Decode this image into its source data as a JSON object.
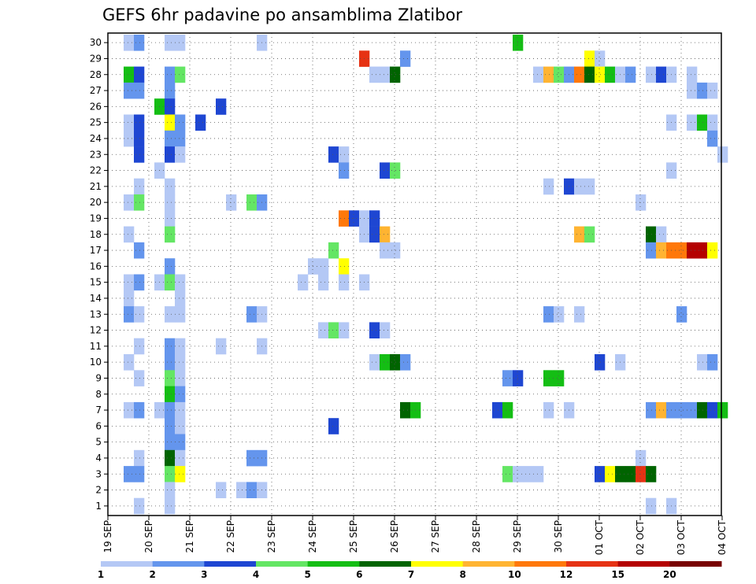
{
  "chart_data": {
    "type": "heatmap",
    "title": "GEFS 6hr padavine po ansamblima Zlatibor",
    "xlabel": "",
    "ylabel": "",
    "y_members": [
      1,
      30
    ],
    "y_ticks": [
      "1",
      "2",
      "3",
      "4",
      "5",
      "6",
      "7",
      "8",
      "9",
      "10",
      "11",
      "12",
      "13",
      "14",
      "15",
      "16",
      "17",
      "18",
      "19",
      "20",
      "21",
      "22",
      "23",
      "24",
      "25",
      "26",
      "27",
      "28",
      "29",
      "30"
    ],
    "x_ticks": [
      "19 SEP",
      "20 SEP",
      "21 SEP",
      "22 SEP",
      "23 SEP",
      "24 SEP",
      "25 SEP",
      "26 SEP",
      "27 SEP",
      "28 SEP",
      "29 SEP",
      "30 SEP",
      "01 OCT",
      "02 OCT",
      "03 OCT",
      "04 OCT"
    ],
    "x_unit": "6-hour step from 19 SEP 00Z",
    "x_range": [
      0,
      60
    ],
    "grid": true,
    "legend": {
      "position": "bottom",
      "thresholds": [
        "1",
        "2",
        "3",
        "4",
        "5",
        "6",
        "7",
        "8",
        "10",
        "12",
        "15",
        "20"
      ],
      "colors": [
        "#b4c8f5",
        "#6495ed",
        "#1e46d2",
        "#64e664",
        "#14be14",
        "#006400",
        "#ffff00",
        "#ffb432",
        "#ff780a",
        "#e63214",
        "#b40000",
        "#780000"
      ]
    },
    "cells": [
      [
        30,
        1,
        0
      ],
      [
        30,
        2,
        1
      ],
      [
        30,
        5,
        0
      ],
      [
        30,
        6,
        0
      ],
      [
        30,
        14,
        0
      ],
      [
        30,
        39,
        4
      ],
      [
        29,
        24,
        9
      ],
      [
        29,
        28,
        1
      ],
      [
        29,
        46,
        6
      ],
      [
        29,
        47,
        0
      ],
      [
        28,
        1,
        4
      ],
      [
        28,
        2,
        2
      ],
      [
        28,
        5,
        1
      ],
      [
        28,
        6,
        3
      ],
      [
        28,
        25,
        0
      ],
      [
        28,
        26,
        0
      ],
      [
        28,
        27,
        5
      ],
      [
        28,
        41,
        0
      ],
      [
        28,
        42,
        7
      ],
      [
        28,
        43,
        3
      ],
      [
        28,
        44,
        1
      ],
      [
        28,
        45,
        8
      ],
      [
        28,
        46,
        5
      ],
      [
        28,
        47,
        6
      ],
      [
        28,
        48,
        4
      ],
      [
        28,
        49,
        0
      ],
      [
        28,
        50,
        1
      ],
      [
        28,
        52,
        0
      ],
      [
        28,
        53,
        2
      ],
      [
        28,
        54,
        0
      ],
      [
        28,
        56,
        0
      ],
      [
        27,
        1,
        1
      ],
      [
        27,
        2,
        1
      ],
      [
        27,
        5,
        1
      ],
      [
        27,
        56,
        0
      ],
      [
        27,
        57,
        1
      ],
      [
        27,
        58,
        0
      ],
      [
        26,
        4,
        4
      ],
      [
        26,
        5,
        2
      ],
      [
        26,
        10,
        2
      ],
      [
        25,
        1,
        0
      ],
      [
        25,
        2,
        2
      ],
      [
        25,
        5,
        6
      ],
      [
        25,
        6,
        1
      ],
      [
        25,
        8,
        2
      ],
      [
        25,
        54,
        0
      ],
      [
        25,
        56,
        0
      ],
      [
        25,
        57,
        4
      ],
      [
        25,
        58,
        0
      ],
      [
        24,
        1,
        0
      ],
      [
        24,
        2,
        2
      ],
      [
        24,
        5,
        1
      ],
      [
        24,
        6,
        1
      ],
      [
        24,
        58,
        1
      ],
      [
        23,
        2,
        2
      ],
      [
        23,
        5,
        2
      ],
      [
        23,
        6,
        0
      ],
      [
        23,
        21,
        2
      ],
      [
        23,
        22,
        0
      ],
      [
        23,
        59,
        0
      ],
      [
        22,
        4,
        0
      ],
      [
        22,
        22,
        1
      ],
      [
        22,
        26,
        2
      ],
      [
        22,
        27,
        3
      ],
      [
        22,
        54,
        0
      ],
      [
        21,
        2,
        0
      ],
      [
        21,
        5,
        0
      ],
      [
        21,
        42,
        0
      ],
      [
        21,
        44,
        2
      ],
      [
        21,
        45,
        0
      ],
      [
        21,
        46,
        0
      ],
      [
        20,
        1,
        0
      ],
      [
        20,
        2,
        3
      ],
      [
        20,
        5,
        0
      ],
      [
        20,
        11,
        0
      ],
      [
        20,
        13,
        3
      ],
      [
        20,
        14,
        1
      ],
      [
        20,
        51,
        0
      ],
      [
        19,
        5,
        0
      ],
      [
        19,
        22,
        8
      ],
      [
        19,
        23,
        2
      ],
      [
        19,
        24,
        0
      ],
      [
        19,
        25,
        2
      ],
      [
        18,
        1,
        0
      ],
      [
        18,
        5,
        3
      ],
      [
        18,
        24,
        0
      ],
      [
        18,
        25,
        2
      ],
      [
        18,
        26,
        7
      ],
      [
        18,
        45,
        7
      ],
      [
        18,
        46,
        3
      ],
      [
        18,
        52,
        5
      ],
      [
        18,
        53,
        0
      ],
      [
        17,
        2,
        1
      ],
      [
        17,
        21,
        3
      ],
      [
        17,
        26,
        0
      ],
      [
        17,
        27,
        0
      ],
      [
        17,
        52,
        1
      ],
      [
        17,
        53,
        7
      ],
      [
        17,
        54,
        8
      ],
      [
        17,
        55,
        8
      ],
      [
        17,
        56,
        10
      ],
      [
        17,
        57,
        10
      ],
      [
        17,
        58,
        6
      ],
      [
        16,
        5,
        1
      ],
      [
        16,
        19,
        0
      ],
      [
        16,
        20,
        0
      ],
      [
        16,
        22,
        6
      ],
      [
        15,
        1,
        0
      ],
      [
        15,
        2,
        1
      ],
      [
        15,
        4,
        0
      ],
      [
        15,
        5,
        3
      ],
      [
        15,
        6,
        0
      ],
      [
        15,
        18,
        0
      ],
      [
        15,
        20,
        0
      ],
      [
        15,
        22,
        0
      ],
      [
        15,
        24,
        0
      ],
      [
        14,
        1,
        0
      ],
      [
        14,
        6,
        0
      ],
      [
        13,
        1,
        1
      ],
      [
        13,
        2,
        0
      ],
      [
        13,
        5,
        0
      ],
      [
        13,
        6,
        0
      ],
      [
        13,
        13,
        1
      ],
      [
        13,
        14,
        0
      ],
      [
        13,
        42,
        1
      ],
      [
        13,
        43,
        0
      ],
      [
        13,
        45,
        0
      ],
      [
        13,
        55,
        1
      ],
      [
        12,
        20,
        0
      ],
      [
        12,
        21,
        3
      ],
      [
        12,
        22,
        0
      ],
      [
        12,
        25,
        2
      ],
      [
        12,
        26,
        0
      ],
      [
        11,
        2,
        0
      ],
      [
        11,
        5,
        1
      ],
      [
        11,
        6,
        0
      ],
      [
        11,
        10,
        0
      ],
      [
        11,
        14,
        0
      ],
      [
        10,
        1,
        0
      ],
      [
        10,
        5,
        1
      ],
      [
        10,
        6,
        0
      ],
      [
        10,
        25,
        0
      ],
      [
        10,
        26,
        4
      ],
      [
        10,
        27,
        5
      ],
      [
        10,
        28,
        1
      ],
      [
        10,
        47,
        2
      ],
      [
        10,
        49,
        0
      ],
      [
        10,
        57,
        0
      ],
      [
        10,
        58,
        1
      ],
      [
        9,
        2,
        0
      ],
      [
        9,
        5,
        3
      ],
      [
        9,
        6,
        0
      ],
      [
        9,
        38,
        1
      ],
      [
        9,
        39,
        2
      ],
      [
        9,
        42,
        4
      ],
      [
        9,
        43,
        4
      ],
      [
        8,
        5,
        4
      ],
      [
        8,
        6,
        1
      ],
      [
        7,
        1,
        0
      ],
      [
        7,
        2,
        1
      ],
      [
        7,
        4,
        0
      ],
      [
        7,
        5,
        1
      ],
      [
        7,
        6,
        0
      ],
      [
        7,
        28,
        5
      ],
      [
        7,
        29,
        4
      ],
      [
        7,
        37,
        2
      ],
      [
        7,
        38,
        4
      ],
      [
        7,
        42,
        0
      ],
      [
        7,
        44,
        0
      ],
      [
        7,
        52,
        1
      ],
      [
        7,
        53,
        7
      ],
      [
        7,
        54,
        1
      ],
      [
        7,
        55,
        1
      ],
      [
        7,
        56,
        1
      ],
      [
        7,
        57,
        5
      ],
      [
        7,
        58,
        2
      ],
      [
        7,
        59,
        4
      ],
      [
        6,
        5,
        1
      ],
      [
        6,
        6,
        0
      ],
      [
        6,
        21,
        2
      ],
      [
        5,
        5,
        1
      ],
      [
        5,
        6,
        1
      ],
      [
        4,
        2,
        0
      ],
      [
        4,
        5,
        5
      ],
      [
        4,
        6,
        0
      ],
      [
        4,
        13,
        1
      ],
      [
        4,
        14,
        1
      ],
      [
        4,
        51,
        0
      ],
      [
        3,
        1,
        1
      ],
      [
        3,
        2,
        1
      ],
      [
        3,
        5,
        3
      ],
      [
        3,
        6,
        6
      ],
      [
        3,
        38,
        3
      ],
      [
        3,
        39,
        0
      ],
      [
        3,
        40,
        0
      ],
      [
        3,
        41,
        0
      ],
      [
        3,
        47,
        2
      ],
      [
        3,
        48,
        6
      ],
      [
        3,
        49,
        5
      ],
      [
        3,
        50,
        5
      ],
      [
        3,
        51,
        9
      ],
      [
        3,
        52,
        5
      ],
      [
        2,
        5,
        0
      ],
      [
        2,
        10,
        0
      ],
      [
        2,
        12,
        0
      ],
      [
        2,
        13,
        1
      ],
      [
        2,
        14,
        0
      ],
      [
        1,
        2,
        0
      ],
      [
        1,
        5,
        0
      ],
      [
        1,
        52,
        0
      ],
      [
        1,
        54,
        0
      ]
    ]
  }
}
